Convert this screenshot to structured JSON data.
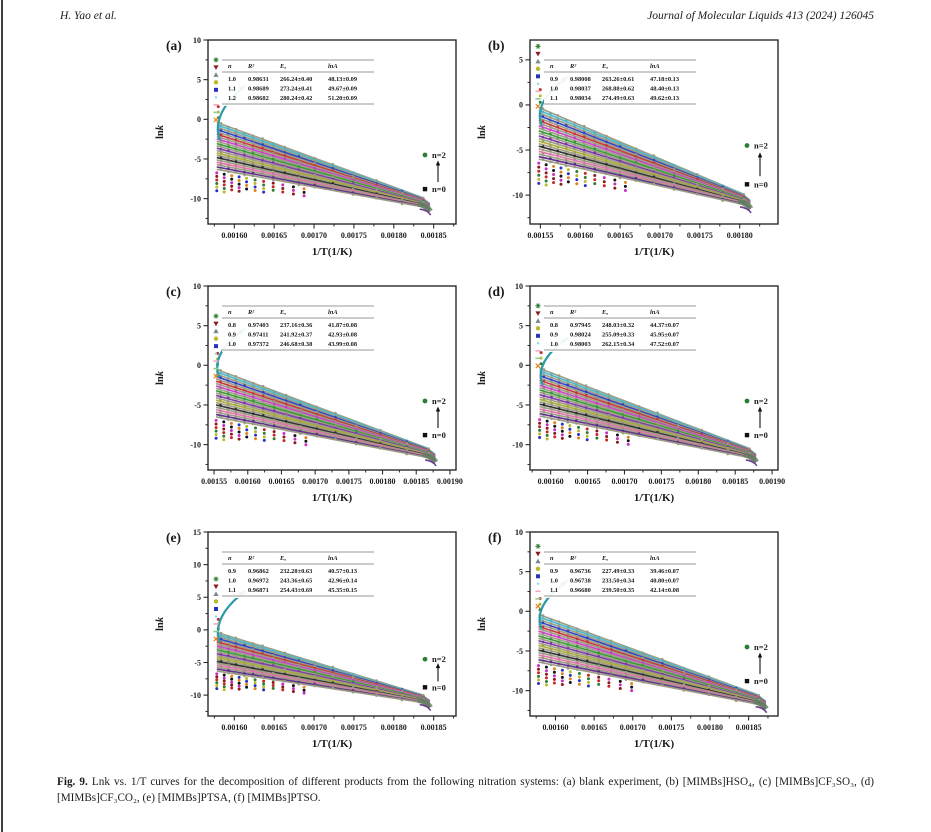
{
  "page": {
    "header_left": "H. Yao et al.",
    "header_right": "Journal of Molecular Liquids 413 (2024) 126045",
    "caption_label": "Fig. 9.",
    "caption_text": " Lnk vs. 1/T curves for the decomposition of different products from the following nitration systems: (a) blank experiment, (b) [MIMBs]HSO₄, (c) [MIMBs]CF₃SO₃, (d) [MIMBs]CF₃CO₂, (e) [MIMBs]PTSA, (f) [MIMBs]PTSO."
  },
  "shared": {
    "legend_headers": [
      "n",
      "R²",
      "Eₐ",
      "lnA"
    ],
    "annotation_top": "n=2",
    "annotation_bottom": "n=0",
    "accent_teal": "#2a9aaa",
    "annotation_green": "#2e7d32",
    "fan_base_color": "#9a9a82",
    "fan_palette": [
      "#45b8cc",
      "#2c3ec2",
      "#c63232",
      "#c63ec6",
      "#2f9a2f",
      "#7a33aa",
      "#a8a832",
      "#2b2b2b",
      "#e070a8",
      "#5a2a8a"
    ],
    "chain_colors": [
      "#141414",
      "#c62828",
      "#2733bd",
      "#c62ec6",
      "#2e7d32",
      "#e0821f",
      "#8b1a1a",
      "#b9b92a"
    ],
    "marker_colors": [
      "#2e7d32",
      "#8b1a1a",
      "#76868f",
      "#b9b92a",
      "#2733bd",
      "#86dbe8",
      "#f2a9bf",
      "#8fce8f",
      "#e0821f"
    ],
    "marker_shapes": [
      "star",
      "tri-down",
      "tri-up",
      "circle",
      "square",
      "dot",
      "dash",
      "dash",
      "cross"
    ]
  },
  "chart_data": [
    {
      "panel": "a",
      "label": "(a)",
      "type": "scatter",
      "xlabel": "1/T(1/K)",
      "ylabel": "lnk",
      "xlim": [
        0.001567,
        0.001878
      ],
      "ylim": [
        -13.2,
        10
      ],
      "xticks": [
        "0.00160",
        "0.00165",
        "0.00170",
        "0.00175",
        "0.00180",
        "0.00185"
      ],
      "yticks": [
        "10",
        "5",
        "0",
        "-5",
        "-10"
      ],
      "legend_rows": [
        [
          "1.0",
          "0.98631",
          "266.24±0.40",
          "48.13±0.09"
        ],
        [
          "1.1",
          "0.98689",
          "273.24±0.41",
          "49.67±0.09"
        ],
        [
          "1.2",
          "0.98682",
          "280.24±0.42",
          "51.20±0.09"
        ]
      ],
      "fan": {
        "n_range": [
          0,
          2
        ],
        "n_curves": 21,
        "x_start": 0.001578,
        "x_end": 0.001845,
        "y_start_top": -0.4,
        "y_start_bottom": -6.3,
        "y_end_top": -10.2,
        "y_end_bottom": -11.2
      },
      "marker_column_top": 7.5,
      "arrow": {
        "base_y": -2.6,
        "tip_y": 4.3
      }
    },
    {
      "panel": "b",
      "label": "(b)",
      "type": "scatter",
      "xlabel": "1/T(1/K)",
      "ylabel": "lnk",
      "xlim": [
        0.001537,
        0.001848
      ],
      "ylim": [
        -13.2,
        7.2
      ],
      "xticks": [
        "0.00155",
        "0.00160",
        "0.00165",
        "0.00170",
        "0.00175",
        "0.00180"
      ],
      "yticks": [
        "5",
        "0",
        "-5",
        "-10"
      ],
      "legend_rows": [
        [
          "0.9",
          "0.98008",
          "263.26±0.61",
          "47.18±0.13"
        ],
        [
          "1.0",
          "0.98037",
          "268.88±0.62",
          "48.40±0.13"
        ],
        [
          "1.1",
          "0.98034",
          "274.49±0.63",
          "49.62±0.13"
        ]
      ],
      "fan": {
        "n_range": [
          0,
          2
        ],
        "n_curves": 21,
        "x_start": 0.001548,
        "x_end": 0.001813,
        "y_start_top": -0.3,
        "y_start_bottom": -6.0,
        "y_end_top": -10.2,
        "y_end_bottom": -11.2
      },
      "marker_column_top": 6.5,
      "arrow": {
        "base_y": -2.3,
        "tip_y": 3.1
      }
    },
    {
      "panel": "c",
      "label": "(c)",
      "type": "scatter",
      "xlabel": "1/T(1/K)",
      "ylabel": "lnk",
      "xlim": [
        0.001541,
        0.001909
      ],
      "ylim": [
        -13.2,
        10
      ],
      "xticks": [
        "0.00155",
        "0.00160",
        "0.00165",
        "0.00170",
        "0.00175",
        "0.00180",
        "0.00185",
        "0.00190"
      ],
      "yticks": [
        "10",
        "5",
        "0",
        "-5",
        "-10"
      ],
      "legend_rows": [
        [
          "0.8",
          "0.97403",
          "237.16±0.36",
          "41.87±0.08"
        ],
        [
          "0.9",
          "0.97411",
          "241.92±0.37",
          "42.93±0.08"
        ],
        [
          "1.0",
          "0.97372",
          "246.68±0.38",
          "43.99±0.08"
        ]
      ],
      "fan": {
        "n_range": [
          0,
          2
        ],
        "n_curves": 21,
        "x_start": 0.001553,
        "x_end": 0.001878,
        "y_start_top": -0.5,
        "y_start_bottom": -6.5,
        "y_end_top": -10.8,
        "y_end_bottom": -11.8
      },
      "marker_column_top": 6.2,
      "arrow": {
        "base_y": -1.5,
        "tip_y": 4.6
      }
    },
    {
      "panel": "d",
      "label": "(d)",
      "type": "scatter",
      "xlabel": "1/T(1/K)",
      "ylabel": "lnk",
      "xlim": [
        0.001572,
        0.001908
      ],
      "ylim": [
        -13.2,
        10
      ],
      "xticks": [
        "0.00160",
        "0.00165",
        "0.00170",
        "0.00175",
        "0.00180",
        "0.00185",
        "0.00190"
      ],
      "yticks": [
        "10",
        "5",
        "0",
        "-5",
        "-10"
      ],
      "legend_rows": [
        [
          "0.8",
          "0.97945",
          "248.03±0.32",
          "44.37±0.07"
        ],
        [
          "0.9",
          "0.98024",
          "255.09±0.33",
          "45.95±0.07"
        ],
        [
          "1.0",
          "0.98003",
          "262.15±0.34",
          "47.52±0.07"
        ]
      ],
      "fan": {
        "n_range": [
          0,
          2
        ],
        "n_curves": 21,
        "x_start": 0.001585,
        "x_end": 0.001878,
        "y_start_top": -0.4,
        "y_start_bottom": -6.4,
        "y_end_top": -10.8,
        "y_end_bottom": -11.8
      },
      "marker_column_top": 7.5,
      "arrow": {
        "base_y": -2.5,
        "tip_y": 3.5
      }
    },
    {
      "panel": "e",
      "label": "(e)",
      "type": "scatter",
      "xlabel": "1/T(1/K)",
      "ylabel": "lnk",
      "xlim": [
        0.001567,
        0.001878
      ],
      "ylim": [
        -13.2,
        15
      ],
      "xticks": [
        "0.00160",
        "0.00165",
        "0.00170",
        "0.00175",
        "0.00180",
        "0.00185"
      ],
      "yticks": [
        "15",
        "10",
        "5",
        "0",
        "-5",
        "-10"
      ],
      "legend_rows": [
        [
          "0.9",
          "0.96862",
          "232.28±0.63",
          "40.57±0.13"
        ],
        [
          "1.0",
          "0.96972",
          "243.36±0.65",
          "42.96±0.14"
        ],
        [
          "1.1",
          "0.96871",
          "254.43±0.69",
          "45.35±0.15"
        ]
      ],
      "fan": {
        "n_range": [
          0,
          2
        ],
        "n_curves": 21,
        "x_start": 0.001578,
        "x_end": 0.001845,
        "y_start_top": -0.4,
        "y_start_bottom": -6.3,
        "y_end_top": -10.3,
        "y_end_bottom": -11.3
      },
      "marker_column_top": 7.8,
      "arrow": {
        "base_y": -2.0,
        "tip_y": 6.0
      }
    },
    {
      "panel": "f",
      "label": "(f)",
      "type": "scatter",
      "xlabel": "1/T(1/K)",
      "ylabel": "lnk",
      "xlim": [
        0.001567,
        0.001888
      ],
      "ylim": [
        -13.2,
        10
      ],
      "xticks": [
        "0.00160",
        "0.00165",
        "0.00170",
        "0.00175",
        "0.00180",
        "0.00185"
      ],
      "yticks": [
        "10",
        "5",
        "0",
        "-5",
        "-10"
      ],
      "legend_rows": [
        [
          "0.9",
          "0.96736",
          "227.49±0.33",
          "39.46±0.07"
        ],
        [
          "1.0",
          "0.96738",
          "233.50±0.34",
          "40.80±0.07"
        ],
        [
          "1.1",
          "0.96680",
          "239.50±0.35",
          "42.14±0.08"
        ]
      ],
      "fan": {
        "n_range": [
          0,
          2
        ],
        "n_curves": 21,
        "x_start": 0.001578,
        "x_end": 0.001872,
        "y_start_top": -0.4,
        "y_start_bottom": -6.4,
        "y_end_top": -10.9,
        "y_end_bottom": -11.9
      },
      "marker_column_top": 8.2,
      "arrow": {
        "base_y": -2.2,
        "tip_y": 3.8
      }
    }
  ]
}
